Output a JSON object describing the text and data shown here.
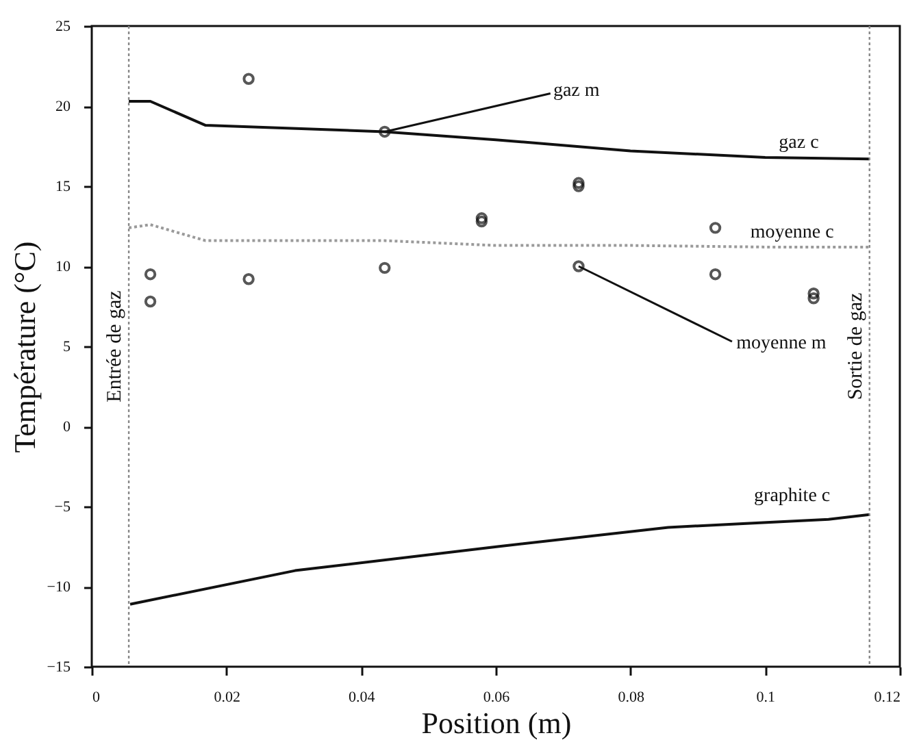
{
  "chart_data": {
    "type": "line",
    "xlabel": "Position (m)",
    "ylabel": "Température (°C)",
    "xlim": [
      0,
      0.12
    ],
    "xticks": [
      0,
      0.02,
      0.04,
      0.06,
      0.08,
      0.1,
      0.12
    ],
    "ylim": [
      -15,
      25
    ],
    "yticks": [
      -15,
      -10,
      -5,
      0,
      5,
      10,
      15,
      20,
      25
    ],
    "grid": false,
    "series": [
      {
        "type": "line",
        "color": "#111111",
        "line_style": "solid",
        "x": [
          0.0055,
          0.0087,
          0.0169,
          0.0435,
          0.06,
          0.08,
          0.1,
          0.1155
        ],
        "values": [
          20.3,
          20.3,
          18.8,
          18.4,
          17.9,
          17.2,
          16.8,
          16.7
        ]
      },
      {
        "type": "line",
        "color": "#9a9a9a",
        "line_style": "dotted",
        "x": [
          0.0055,
          0.0087,
          0.0169,
          0.0435,
          0.06,
          0.08,
          0.1,
          0.1155
        ],
        "values": [
          12.4,
          12.6,
          11.6,
          11.6,
          11.3,
          11.3,
          11.2,
          11.2
        ]
      },
      {
        "type": "line",
        "color": "#111111",
        "line_style": "solid",
        "x": [
          0.0057,
          0.0302,
          0.0603,
          0.0856,
          0.1094,
          0.1155
        ],
        "values": [
          -11.1,
          -9.0,
          -7.5,
          -6.3,
          -5.8,
          -5.5
        ]
      },
      {
        "type": "scatter",
        "color": "#111111",
        "marker": "circle",
        "x": [
          0.0087,
          0.0087,
          0.0233,
          0.0233,
          0.0435,
          0.0435,
          0.0579,
          0.0579,
          0.0723,
          0.0723,
          0.0723,
          0.0926,
          0.0926,
          0.1072,
          0.1072
        ],
        "values": [
          9.5,
          7.8,
          21.7,
          9.2,
          18.4,
          9.9,
          13.0,
          12.8,
          15.2,
          15.0,
          10.0,
          12.4,
          9.5,
          8.3,
          8.0
        ]
      }
    ],
    "ref_lines": [
      {
        "axis": "x",
        "value": 0.0055,
        "label": "Entrée de gaz",
        "color": "#888888",
        "line_style": "dotted"
      },
      {
        "axis": "x",
        "value": 0.1155,
        "label": "Sortie de gaz",
        "color": "#888888",
        "line_style": "dotted"
      }
    ],
    "annotations": [
      {
        "text": "gaz m",
        "x": 0.0435,
        "y": 18.4
      },
      {
        "text": "gaz c",
        "x": 0.105,
        "y": 16.8
      },
      {
        "text": "moyenne c",
        "x": 0.104,
        "y": 11.2
      },
      {
        "text": "moyenne m",
        "x": 0.0723,
        "y": 10.0
      },
      {
        "text": "graphite c",
        "x": 0.104,
        "y": -5.6
      }
    ]
  }
}
